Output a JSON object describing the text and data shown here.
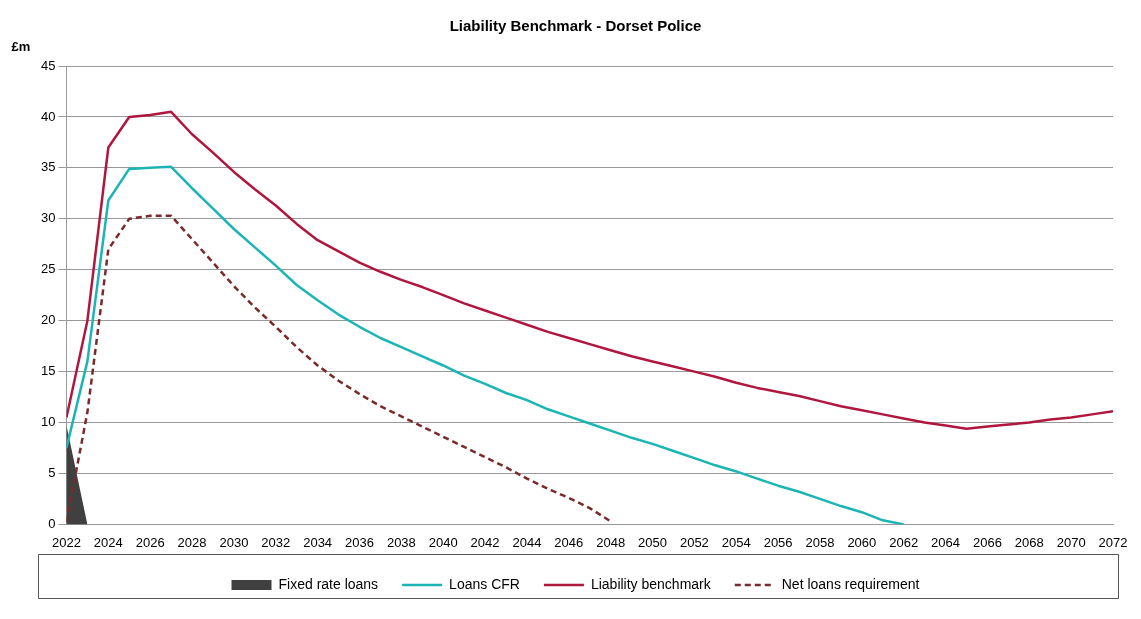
{
  "chart_data": {
    "type": "line",
    "title": "Liability Benchmark - Dorset Police",
    "ylabel": "£m",
    "x": [
      2022,
      2023,
      2024,
      2025,
      2026,
      2027,
      2028,
      2029,
      2030,
      2031,
      2032,
      2033,
      2034,
      2035,
      2036,
      2037,
      2038,
      2039,
      2040,
      2041,
      2042,
      2043,
      2044,
      2045,
      2046,
      2047,
      2048,
      2049,
      2050,
      2051,
      2052,
      2053,
      2054,
      2055,
      2056,
      2057,
      2058,
      2059,
      2060,
      2061,
      2062,
      2063,
      2064,
      2065,
      2066,
      2067,
      2068,
      2069,
      2070,
      2071,
      2072
    ],
    "series": [
      {
        "name": "Fixed rate loans",
        "type": "area",
        "color": "#404040",
        "values": [
          9.7,
          0,
          null,
          null,
          null,
          null,
          null,
          null,
          null,
          null,
          null,
          null,
          null,
          null,
          null,
          null,
          null,
          null,
          null,
          null,
          null,
          null,
          null,
          null,
          null,
          null,
          null,
          null,
          null,
          null,
          null,
          null,
          null,
          null,
          null,
          null,
          null,
          null,
          null,
          null,
          null,
          null,
          null,
          null,
          null,
          null,
          null,
          null,
          null,
          null,
          null
        ]
      },
      {
        "name": "Loans CFR",
        "type": "line",
        "color": "#1bb5b5",
        "values": [
          7.5,
          16,
          31.8,
          34.9,
          35,
          35.1,
          33,
          31,
          29,
          27.2,
          25.4,
          23.5,
          22,
          20.6,
          19.4,
          18.3,
          17.4,
          16.5,
          15.6,
          14.6,
          13.8,
          12.9,
          12.2,
          11.3,
          10.6,
          9.9,
          9.2,
          8.5,
          7.9,
          7.2,
          6.5,
          5.8,
          5.2,
          4.5,
          3.8,
          3.2,
          2.5,
          1.8,
          1.2,
          0.4,
          0,
          null,
          null,
          null,
          null,
          null,
          null,
          null,
          null,
          null,
          null
        ]
      },
      {
        "name": "Liability benchmark",
        "type": "line",
        "color": "#b0173f",
        "values": [
          10.5,
          20,
          37,
          40,
          40.2,
          40.5,
          38.3,
          36.5,
          34.6,
          32.9,
          31.3,
          29.5,
          27.9,
          26.8,
          25.7,
          24.8,
          24,
          23.3,
          22.5,
          21.7,
          21,
          20.3,
          19.6,
          18.9,
          18.3,
          17.7,
          17.1,
          16.5,
          16,
          15.5,
          15,
          14.5,
          13.9,
          13.4,
          13,
          12.6,
          12.1,
          11.6,
          11.2,
          10.8,
          10.4,
          10,
          9.7,
          9.4,
          9.6,
          9.8,
          10,
          10.3,
          10.5,
          10.8,
          11.1
        ]
      },
      {
        "name": "Net loans requirement",
        "type": "line",
        "line_style": "dashed",
        "color": "#7a2a2a",
        "values": [
          0.2,
          11,
          27,
          30,
          30.3,
          30.3,
          28,
          25.7,
          23.4,
          21.3,
          19.4,
          17.4,
          15.6,
          14.1,
          12.8,
          11.6,
          10.6,
          9.6,
          8.6,
          7.6,
          6.6,
          5.6,
          4.5,
          3.5,
          2.6,
          1.6,
          0.3,
          null,
          null,
          null,
          null,
          null,
          null,
          null,
          null,
          null,
          null,
          null,
          null,
          null,
          null,
          null,
          null,
          null,
          null,
          null,
          null,
          null,
          null,
          null,
          null
        ]
      }
    ],
    "xlim": [
      2022,
      2072
    ],
    "xticks": [
      2022,
      2024,
      2026,
      2028,
      2030,
      2032,
      2034,
      2036,
      2038,
      2040,
      2042,
      2044,
      2046,
      2048,
      2050,
      2052,
      2054,
      2056,
      2058,
      2060,
      2062,
      2064,
      2066,
      2068,
      2070,
      2072
    ],
    "ylim": [
      0,
      45
    ],
    "yticks": [
      0,
      5,
      10,
      15,
      20,
      25,
      30,
      35,
      40,
      45
    ],
    "grid": "y",
    "legend": "bottom",
    "marker": "none"
  }
}
